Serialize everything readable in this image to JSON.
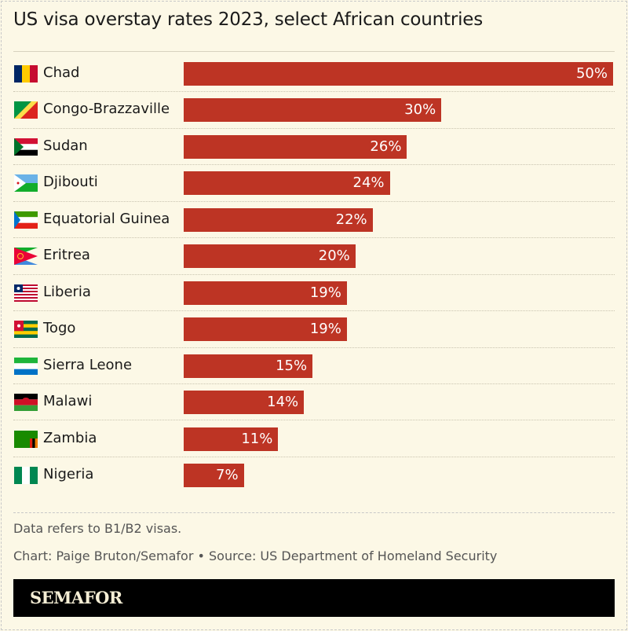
{
  "title": "US visa overstay rates 2023, select African countries",
  "chart_data": {
    "type": "bar",
    "orientation": "horizontal",
    "title": "US visa overstay rates 2023, select African countries",
    "categories": [
      "Chad",
      "Congo-Brazzaville",
      "Sudan",
      "Djibouti",
      "Equatorial Guinea",
      "Eritrea",
      "Liberia",
      "Togo",
      "Sierra Leone",
      "Malawi",
      "Zambia",
      "Nigeria"
    ],
    "values": [
      50,
      30,
      26,
      24,
      22,
      20,
      19,
      19,
      15,
      14,
      11,
      7
    ],
    "labels": [
      "50%",
      "30%",
      "26%",
      "24%",
      "22%",
      "20%",
      "19%",
      "19%",
      "15%",
      "14%",
      "11%",
      "7%"
    ],
    "unit": "%",
    "xlim": [
      0,
      50
    ],
    "bar_color": "#bd3424",
    "flags": [
      "chad-flag-icon",
      "congo-flag-icon",
      "sudan-flag-icon",
      "djibouti-flag-icon",
      "equatorial-guinea-flag-icon",
      "eritrea-flag-icon",
      "liberia-flag-icon",
      "togo-flag-icon",
      "sierra-leone-flag-icon",
      "malawi-flag-icon",
      "zambia-flag-icon",
      "nigeria-flag-icon"
    ]
  },
  "footer": {
    "note": "Data refers to B1/B2 visas.",
    "credit": "Chart: Paige Bruton/Semafor • Source: US Department of Homeland Security",
    "brand": "SEMAFOR"
  },
  "colors": {
    "background": "#fcf8e6",
    "bar": "#bd3424",
    "brand_bar": "#000000"
  }
}
